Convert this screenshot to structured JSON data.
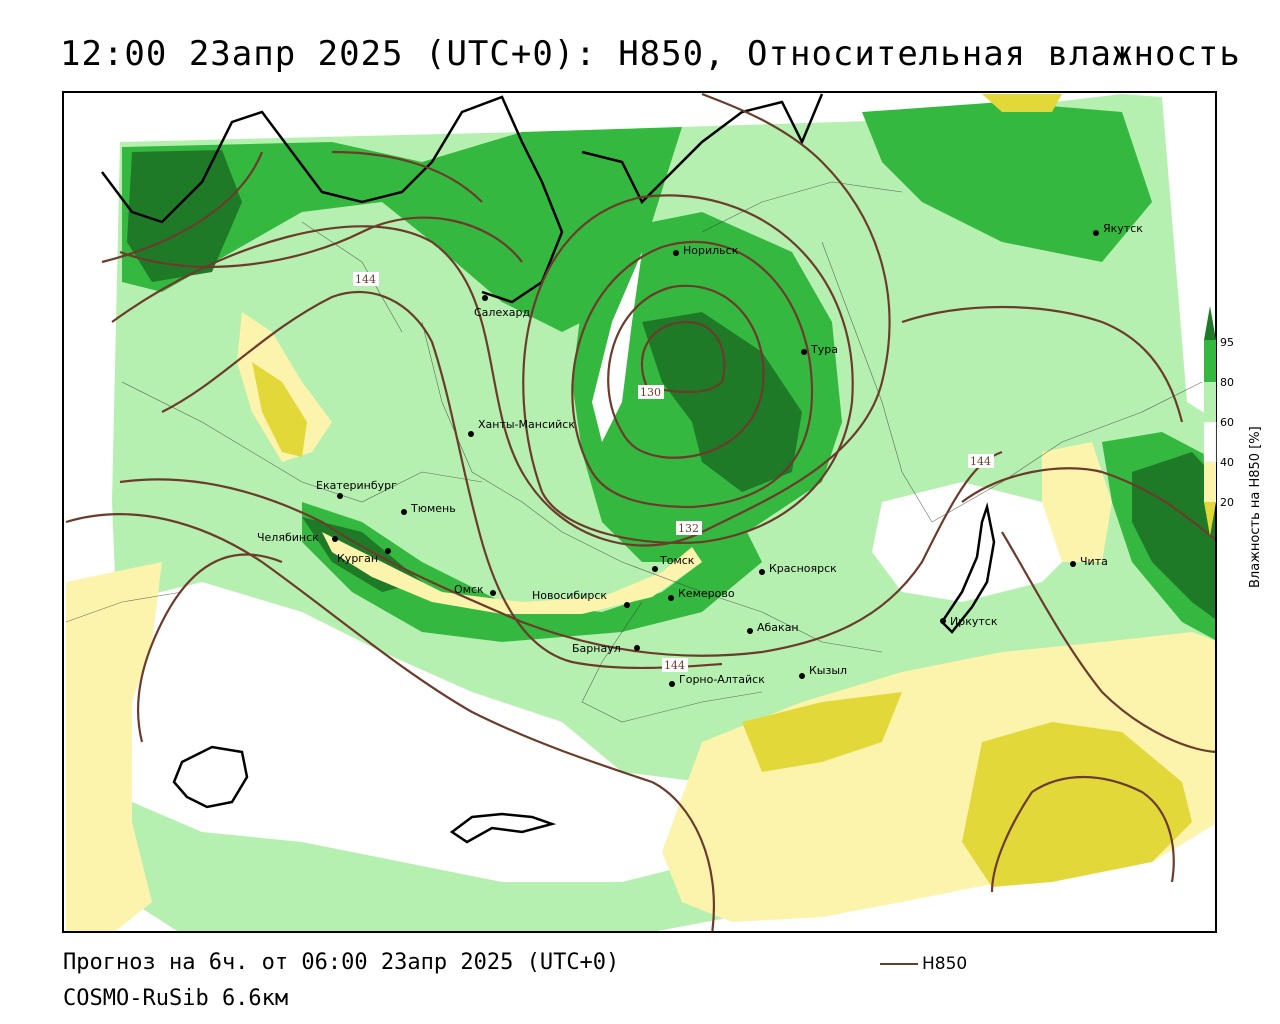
{
  "title": "12:00 23апр 2025 (UTC+0): H850, Относительная влажность",
  "footer": {
    "forecast": "Прогноз на 6ч. от 06:00 23апр 2025 (UTC+0)",
    "model": "COSMO-RuSib 6.6км"
  },
  "contour_key": {
    "label": "H850",
    "color": "#6b3c2c"
  },
  "legend": {
    "title": "Влажность на H850 [%]",
    "ticks": [
      "95",
      "80",
      "60",
      "40",
      "20"
    ],
    "colors": {
      "gt95": "#1f7a28",
      "80_95": "#35b83f",
      "60_80": "#b6f0b0",
      "40_60": "#ffffff",
      "20_40": "#fcf3ac",
      "lt20": "#e3d83a"
    }
  },
  "cities": [
    {
      "name": "Якутск"
    },
    {
      "name": "Норильск"
    },
    {
      "name": "Салехард"
    },
    {
      "name": "Тура"
    },
    {
      "name": "Ханты-Мансийск"
    },
    {
      "name": "Екатеринбург"
    },
    {
      "name": "Тюмень"
    },
    {
      "name": "Челябинск"
    },
    {
      "name": "Курган"
    },
    {
      "name": "Томск"
    },
    {
      "name": "Красноярск"
    },
    {
      "name": "Омск"
    },
    {
      "name": "Новосибирск"
    },
    {
      "name": "Кемерово"
    },
    {
      "name": "Абакан"
    },
    {
      "name": "Барнаул"
    },
    {
      "name": "Горно-Алтайск"
    },
    {
      "name": "Кызыл"
    },
    {
      "name": "Иркутск"
    },
    {
      "name": "Чита"
    }
  ],
  "contour_labels": [
    "144",
    "130",
    "132",
    "144",
    "144"
  ]
}
